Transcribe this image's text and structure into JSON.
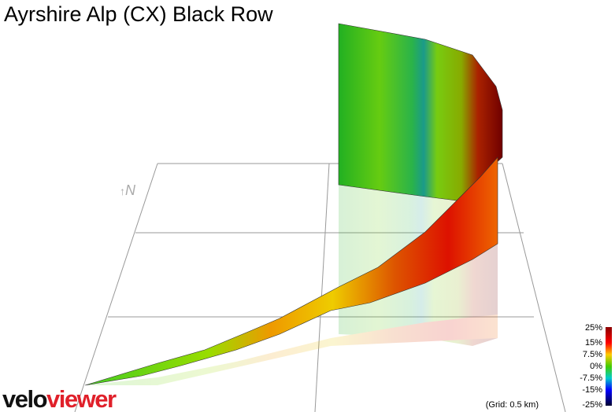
{
  "header": {
    "title": "Ayrshire Alp (CX) Black Row"
  },
  "compass": {
    "label": "N"
  },
  "legend": {
    "labels": [
      "25%",
      "15%",
      "7.5%",
      "0%",
      "-7.5%",
      "-15%",
      "-25%"
    ]
  },
  "grid_note": "(Grid: 0.5 km)",
  "logo": {
    "first": "velo",
    "second": "viewer"
  }
}
